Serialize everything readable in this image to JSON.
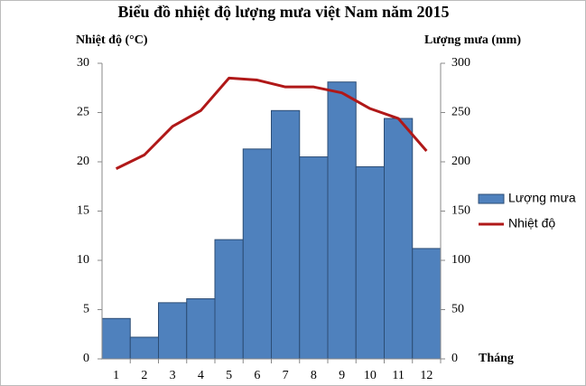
{
  "chart_data": {
    "type": "combo",
    "title": "Biểu đồ nhiệt độ lượng mưa việt Nam năm 2015",
    "y_label": "Nhiệt độ (°C)",
    "y2_label": "Lượng mưa (mm)",
    "x_label": "Tháng",
    "categories": [
      "1",
      "2",
      "3",
      "4",
      "5",
      "6",
      "7",
      "8",
      "9",
      "10",
      "11",
      "12"
    ],
    "series": [
      {
        "name": "Lượng mưa",
        "kind": "bar",
        "axis": "y2",
        "color": "#4f81bd",
        "values": [
          41,
          22,
          57,
          61,
          121,
          213,
          252,
          205,
          281,
          195,
          244,
          112
        ]
      },
      {
        "name": "Nhiệt độ",
        "kind": "line",
        "axis": "y",
        "color": "#b01818",
        "values": [
          19.3,
          20.7,
          23.6,
          25.2,
          28.5,
          28.3,
          27.6,
          27.6,
          27.0,
          25.4,
          24.4,
          21.1
        ]
      }
    ],
    "ylim": [
      0,
      30
    ],
    "yticks": [
      0,
      5,
      10,
      15,
      20,
      25,
      30
    ],
    "y2lim": [
      0,
      300
    ],
    "y2ticks": [
      0,
      50,
      100,
      150,
      200,
      250,
      300
    ],
    "legend": "right"
  }
}
